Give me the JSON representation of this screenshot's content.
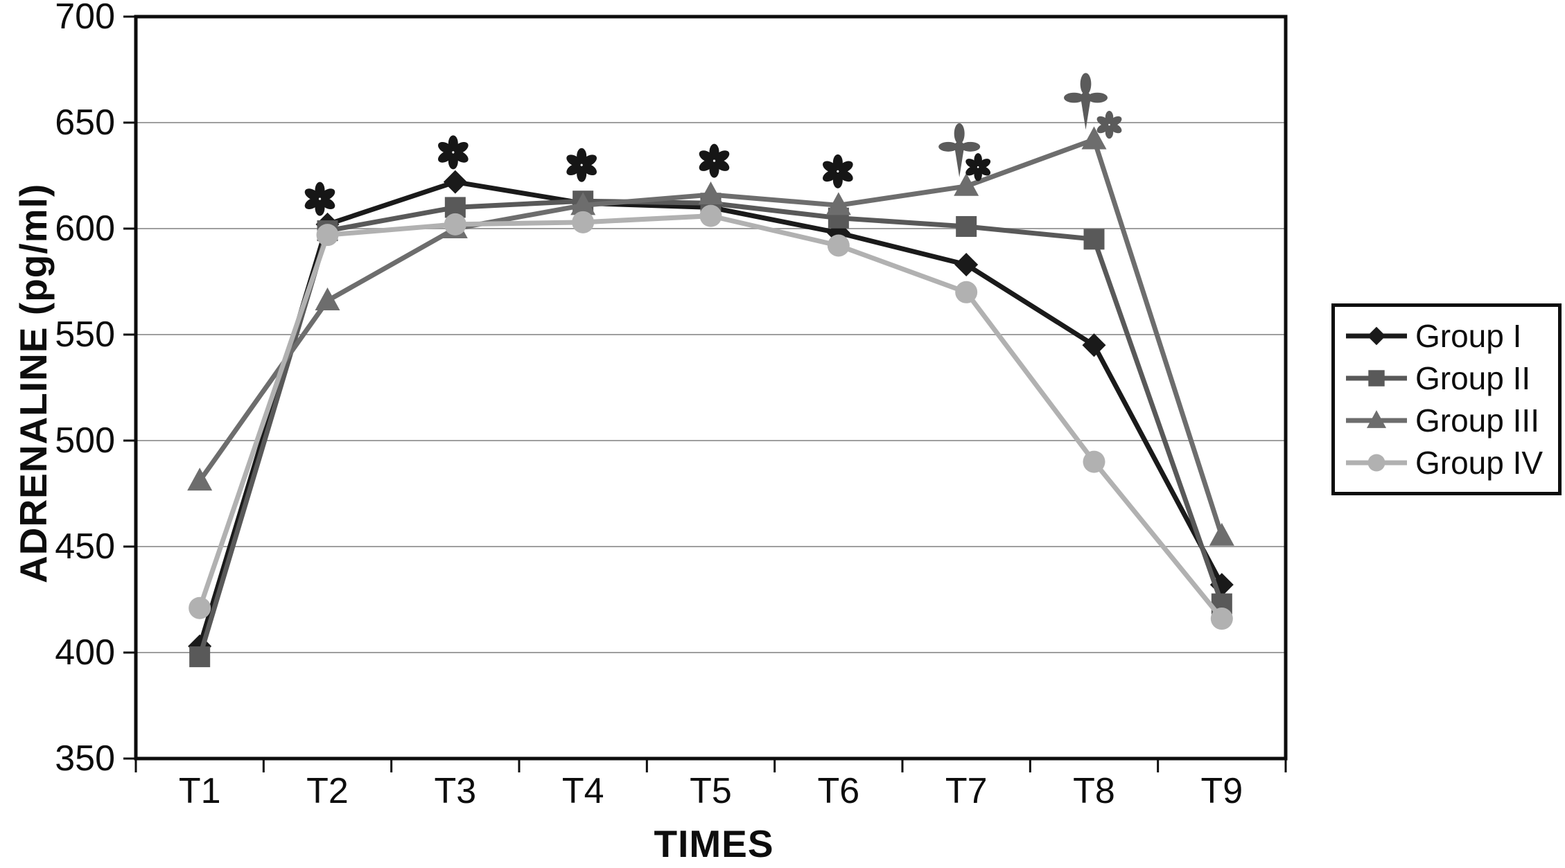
{
  "chart_data": {
    "type": "line",
    "title": "",
    "xlabel": "TIMES",
    "ylabel": "ADRENALINE (pg/ml)",
    "ylim": [
      350,
      700
    ],
    "yticks": [
      350,
      400,
      450,
      500,
      550,
      600,
      650,
      700
    ],
    "categories": [
      "T1",
      "T2",
      "T3",
      "T4",
      "T5",
      "T6",
      "T7",
      "T8",
      "T9"
    ],
    "grid": "horizontal",
    "legend_position": "right",
    "series": [
      {
        "name": "Group I",
        "marker": "diamond",
        "color": "#1a1a1a",
        "values": [
          403,
          602,
          622,
          612,
          610,
          598,
          583,
          545,
          432
        ]
      },
      {
        "name": "Group II",
        "marker": "square",
        "color": "#595959",
        "values": [
          398,
          599,
          610,
          613,
          612,
          605,
          601,
          595,
          423
        ]
      },
      {
        "name": "Group III",
        "marker": "triangle",
        "color": "#6d6d6d",
        "values": [
          481,
          566,
          600,
          611,
          616,
          611,
          620,
          642,
          455
        ]
      },
      {
        "name": "Group IV",
        "marker": "circle",
        "color": "#b1b1b1",
        "values": [
          421,
          597,
          602,
          603,
          606,
          592,
          570,
          490,
          416
        ]
      }
    ],
    "annotations": [
      {
        "symbol": "*",
        "category": "T2",
        "value": 614,
        "dx": -11,
        "scale": 1,
        "color": "#161616"
      },
      {
        "symbol": "*",
        "category": "T3",
        "value": 636,
        "dx": -3,
        "scale": 1,
        "color": "#161616"
      },
      {
        "symbol": "*",
        "category": "T4",
        "value": 630,
        "dx": -2,
        "scale": 1,
        "color": "#161616"
      },
      {
        "symbol": "*",
        "category": "T5",
        "value": 632,
        "dx": 5,
        "scale": 1,
        "color": "#161616"
      },
      {
        "symbol": "*",
        "category": "T6",
        "value": 627,
        "dx": -1,
        "scale": 1,
        "color": "#161616"
      },
      {
        "symbol": "†",
        "category": "T7",
        "value": 636,
        "dx": -10,
        "scale": 1,
        "color": "#5b5b5b"
      },
      {
        "symbol": "*",
        "category": "T7",
        "value": 629,
        "dx": 17,
        "scale": 0.82,
        "color": "#161616"
      },
      {
        "symbol": "†",
        "category": "T8",
        "value": 659,
        "dx": -12,
        "scale": 1.05,
        "color": "#5b5b5b"
      },
      {
        "symbol": "*",
        "category": "T8",
        "value": 649,
        "dx": 22,
        "scale": 0.82,
        "color": "#5b5b5b"
      }
    ],
    "colors": {
      "axis": "#0d0d0d",
      "grid": "#9f9f9f",
      "background": "#ffffff"
    }
  }
}
